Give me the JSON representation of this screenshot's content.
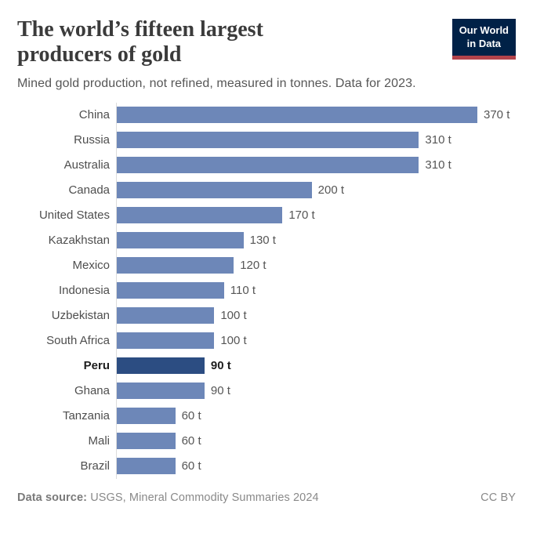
{
  "header": {
    "title": "The world’s fifteen largest producers of gold",
    "logo": {
      "line1": "Our World",
      "line2": "in Data"
    }
  },
  "subtitle": "Mined gold production, not refined, measured in tonnes. Data for 2023.",
  "chart_data": {
    "type": "bar",
    "orientation": "horizontal",
    "title": "The world’s fifteen largest producers of gold",
    "subtitle": "Mined gold production, not refined, measured in tonnes. Data for 2023.",
    "categories": [
      "China",
      "Russia",
      "Australia",
      "Canada",
      "United States",
      "Kazakhstan",
      "Mexico",
      "Indonesia",
      "Uzbekistan",
      "South Africa",
      "Peru",
      "Ghana",
      "Tanzania",
      "Mali",
      "Brazil"
    ],
    "values": [
      370,
      310,
      310,
      200,
      170,
      130,
      120,
      110,
      100,
      100,
      90,
      90,
      60,
      60,
      60
    ],
    "unit": "t",
    "xlim": [
      0,
      370
    ],
    "grid": false,
    "legend": "none",
    "highlight_category": "Peru",
    "colors": {
      "bar": "#6d87b8",
      "highlight_bar": "#2c4d82",
      "logo_background": "#002147",
      "logo_underline": "#b2434b"
    }
  },
  "footer": {
    "source_label": "Data source:",
    "source_text": "USGS, Mineral Commodity Summaries 2024",
    "license": "CC BY"
  }
}
